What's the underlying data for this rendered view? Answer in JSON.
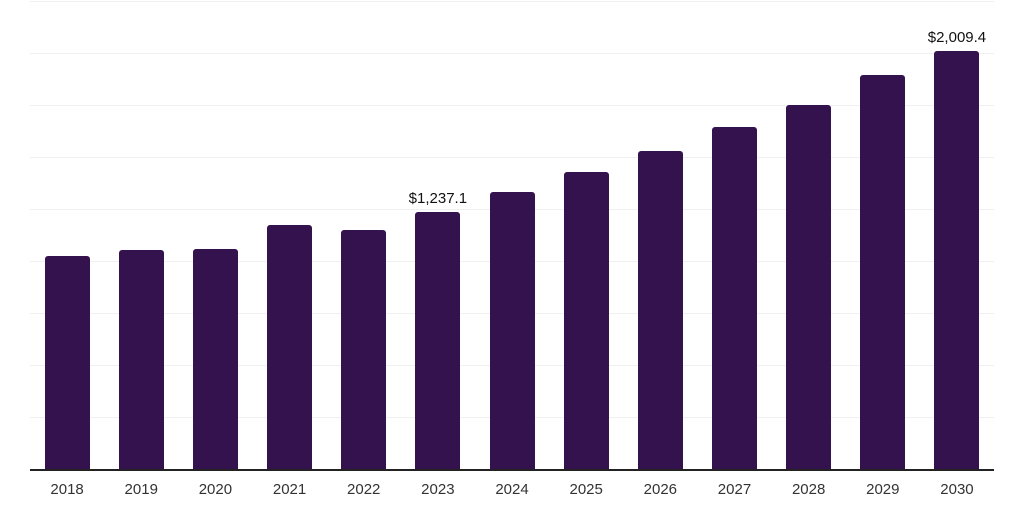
{
  "chart_data": {
    "type": "bar",
    "title": "",
    "xlabel": "",
    "ylabel": "",
    "categories": [
      "2018",
      "2019",
      "2020",
      "2021",
      "2022",
      "2023",
      "2024",
      "2025",
      "2026",
      "2027",
      "2028",
      "2029",
      "2030"
    ],
    "values": [
      1025,
      1055,
      1060,
      1175,
      1147,
      1237.1,
      1330,
      1426,
      1527,
      1643,
      1749,
      1893,
      2009.4
    ],
    "data_labels": {
      "2023": "$1,237.1",
      "2030": "$2,009.4"
    },
    "ylim": [
      0,
      2250
    ],
    "gridline_step": 250,
    "grid": "horizontal",
    "legend_position": "none",
    "colors": {
      "bar": "#33124e",
      "gridline": "#f0f0f0",
      "axis_line": "#222222",
      "tick_label": "#333333",
      "value_label": "#111111",
      "background": "#ffffff"
    }
  }
}
